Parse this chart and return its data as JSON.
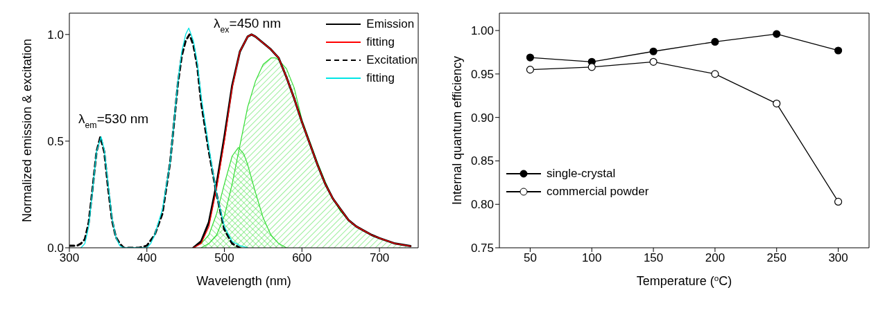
{
  "chart_data": [
    {
      "type": "line",
      "xlabel": "Wavelength (nm)",
      "ylabel": "Normalized emission & excitation",
      "xlim": [
        300,
        750
      ],
      "xticks": [
        300,
        400,
        500,
        600,
        700
      ],
      "ylim": [
        0,
        1.1
      ],
      "yticks": [
        {
          "value": 0,
          "label": "0.0"
        },
        {
          "value": 0.5,
          "label": "0.5"
        },
        {
          "value": 1,
          "label": "1.0"
        }
      ],
      "grid": false,
      "legend": "top right",
      "line_style": "solid",
      "marker": "none",
      "annotations": [
        "λ$_{ex}$=450 nm",
        "λ$_{em}$=530 nm"
      ],
      "series": [
        {
          "type": "area",
          "color": "#33dd33",
          "x": [
            470,
            480,
            490,
            500,
            510,
            520,
            530,
            540,
            550,
            560,
            566,
            570,
            580,
            590,
            600,
            610,
            620,
            630,
            640,
            650,
            660,
            670,
            680,
            690,
            700,
            720,
            740
          ],
          "values": [
            0,
            0.02,
            0.06,
            0.15,
            0.3,
            0.48,
            0.66,
            0.78,
            0.86,
            0.89,
            0.89,
            0.88,
            0.84,
            0.75,
            0.6,
            0.5,
            0.4,
            0.31,
            0.23,
            0.17,
            0.13,
            0.1,
            0.08,
            0.06,
            0.045,
            0.02,
            0.008
          ]
        },
        {
          "type": "area",
          "color": "#33dd33",
          "x": [
            470,
            480,
            490,
            500,
            510,
            518,
            525,
            530,
            540,
            550,
            560,
            570,
            580
          ],
          "values": [
            0.02,
            0.06,
            0.16,
            0.3,
            0.43,
            0.47,
            0.44,
            0.39,
            0.26,
            0.14,
            0.06,
            0.02,
            0
          ]
        },
        {
          "name": "Emission",
          "color": "#000000",
          "x": [
            460,
            470,
            480,
            490,
            500,
            510,
            520,
            530,
            535,
            540,
            550,
            560,
            570,
            580,
            590,
            600,
            610,
            620,
            630,
            640,
            650,
            660,
            670,
            680,
            690,
            700,
            720,
            740
          ],
          "values": [
            0,
            0.03,
            0.12,
            0.3,
            0.52,
            0.76,
            0.92,
            0.99,
            1,
            0.99,
            0.96,
            0.93,
            0.89,
            0.8,
            0.7,
            0.59,
            0.49,
            0.39,
            0.3,
            0.23,
            0.18,
            0.13,
            0.1,
            0.08,
            0.06,
            0.045,
            0.02,
            0.008
          ]
        },
        {
          "name": "fitting",
          "color": "#ff0000",
          "x": [
            460,
            470,
            480,
            490,
            500,
            510,
            520,
            530,
            535,
            540,
            550,
            560,
            570,
            580,
            590,
            600,
            610,
            620,
            630,
            640,
            650,
            660,
            670,
            680,
            690,
            700,
            720,
            740
          ],
          "values": [
            0,
            0.02,
            0.1,
            0.28,
            0.5,
            0.75,
            0.92,
            0.99,
            1,
            0.99,
            0.96,
            0.93,
            0.89,
            0.8,
            0.7,
            0.59,
            0.49,
            0.39,
            0.3,
            0.23,
            0.18,
            0.13,
            0.1,
            0.08,
            0.06,
            0.045,
            0.02,
            0.008
          ]
        },
        {
          "name": "Excitation",
          "color": "#000000",
          "line_style": "dashed",
          "x": [
            300,
            310,
            315,
            320,
            325,
            330,
            335,
            340,
            345,
            350,
            355,
            360,
            365,
            370,
            380,
            390,
            400,
            410,
            420,
            430,
            440,
            445,
            450,
            455,
            460,
            465,
            470,
            480,
            490,
            500,
            510,
            520
          ],
          "values": [
            0.01,
            0.01,
            0.02,
            0.04,
            0.12,
            0.28,
            0.45,
            0.52,
            0.45,
            0.28,
            0.13,
            0.05,
            0.02,
            0,
            0,
            0,
            0.01,
            0.06,
            0.16,
            0.4,
            0.77,
            0.9,
            0.97,
            1,
            0.95,
            0.85,
            0.68,
            0.45,
            0.25,
            0.085,
            0.02,
            0
          ]
        },
        {
          "name": "fitting",
          "color": "#00e5e5",
          "x": [
            315,
            320,
            325,
            330,
            335,
            341,
            345,
            350,
            355,
            360,
            365,
            370,
            400,
            405,
            410,
            420,
            430,
            440,
            445,
            450,
            454,
            460,
            465,
            470,
            480,
            490,
            500,
            510,
            520,
            530
          ],
          "values": [
            0,
            0.02,
            0.1,
            0.27,
            0.45,
            0.52,
            0.46,
            0.3,
            0.14,
            0.05,
            0.01,
            0,
            0,
            0.02,
            0.06,
            0.18,
            0.4,
            0.78,
            0.92,
            1,
            1.03,
            0.97,
            0.87,
            0.71,
            0.47,
            0.25,
            0.1,
            0.03,
            0.01,
            0
          ]
        }
      ]
    },
    {
      "type": "line",
      "xlabel": "Temperature ($^{o}$C)",
      "ylabel": "Internal quantum efficiency",
      "x": [
        50,
        100,
        150,
        200,
        250,
        300
      ],
      "xlim": [
        25,
        325
      ],
      "xticks": [
        50,
        100,
        150,
        200,
        250,
        300
      ],
      "ylim": [
        0.75,
        1.02
      ],
      "yticks": [
        0.75,
        {
          "value": 0.8,
          "label": "0.80"
        },
        0.85,
        {
          "value": 0.9,
          "label": "0.90"
        },
        0.95,
        {
          "value": 1,
          "label": "1.00"
        }
      ],
      "grid": false,
      "legend": "left",
      "marker": "circle",
      "line_style": "solid",
      "series": [
        {
          "name": "single-crystal",
          "color": "#000000",
          "values": [
            0.969,
            0.964,
            0.976,
            0.987,
            0.996,
            0.977
          ]
        },
        {
          "name": "commercial powder",
          "color": "#000000",
          "values": [
            0.955,
            0.958,
            0.964,
            0.95,
            0.916,
            0.803
          ]
        }
      ]
    }
  ]
}
